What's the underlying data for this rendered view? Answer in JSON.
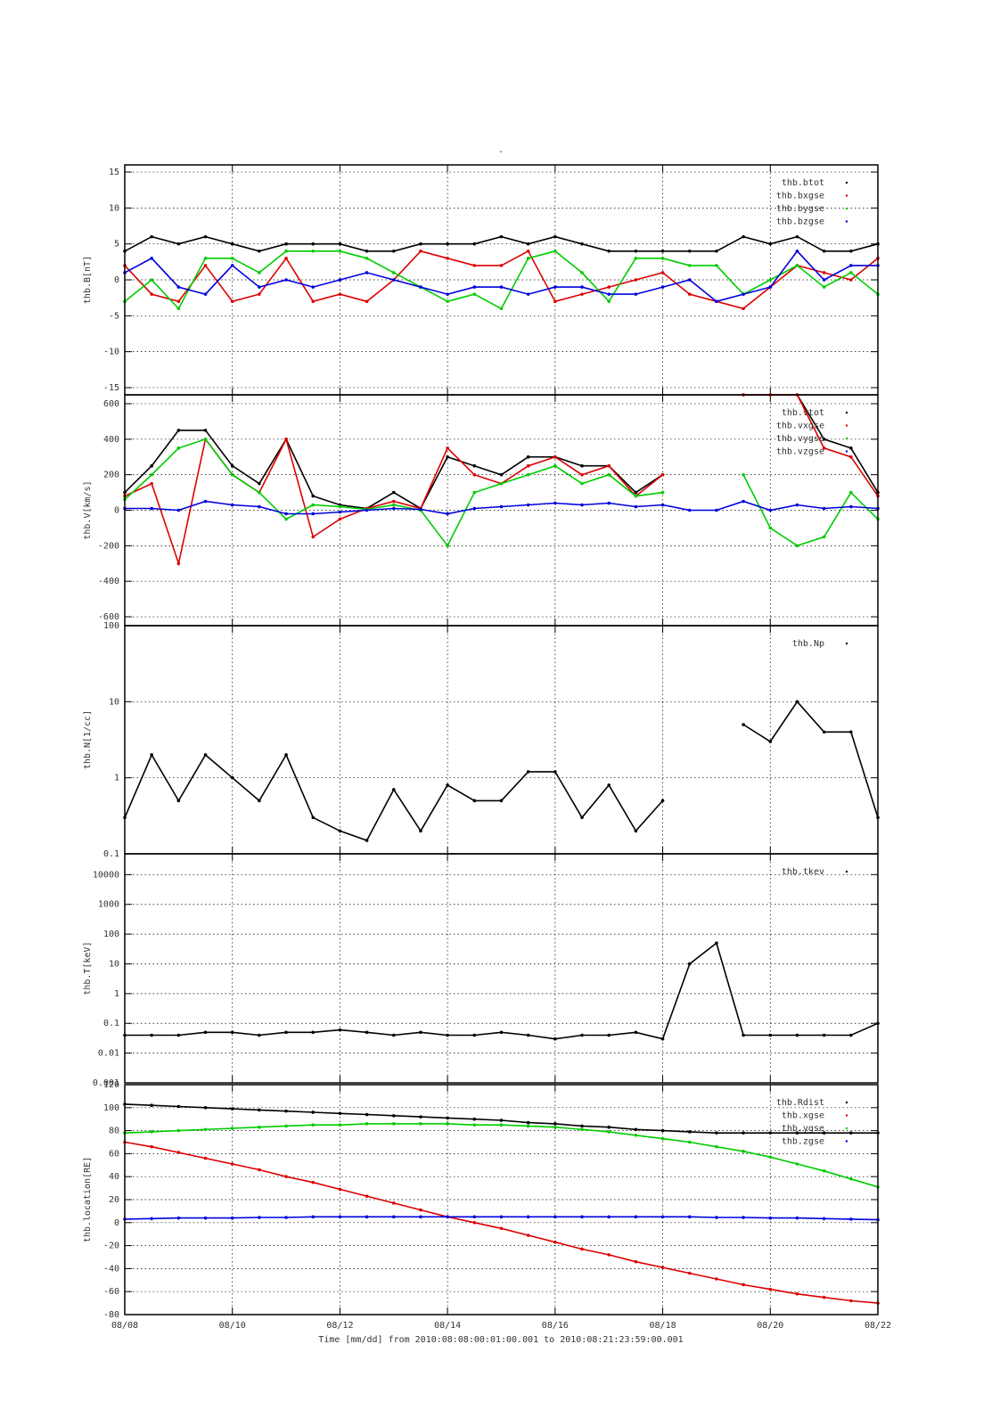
{
  "title": "-",
  "x_axis": {
    "label": "Time [mm/dd]  from 2010:08:08:00:01:00.001  to  2010:08:21:23:59:00.001",
    "x": [
      8,
      8.5,
      9,
      9.5,
      10,
      10.5,
      11,
      11.5,
      12,
      12.5,
      13,
      13.5,
      14,
      14.5,
      15,
      15.5,
      16,
      16.5,
      17,
      17.5,
      18,
      18.5,
      19,
      19.5,
      20,
      20.5,
      21,
      21.5,
      22
    ],
    "xlim": [
      8,
      22
    ],
    "xticks": [
      {
        "value": 8,
        "label": "08/08"
      },
      {
        "value": 10,
        "label": "08/10"
      },
      {
        "value": 12,
        "label": "08/12"
      },
      {
        "value": 14,
        "label": "08/14"
      },
      {
        "value": 16,
        "label": "08/16"
      },
      {
        "value": 18,
        "label": "08/18"
      },
      {
        "value": 20,
        "label": "08/20"
      },
      {
        "value": 22,
        "label": "08/22"
      }
    ]
  },
  "chart_data": [
    {
      "type": "scatter",
      "ylabel": "thb.B[nT]",
      "ylim": [
        -16,
        16
      ],
      "yticks": [
        -15,
        -10,
        -5,
        0,
        5,
        10,
        15
      ],
      "log": false,
      "grid": true,
      "series": [
        {
          "name": "thb.btot",
          "color": "#000000",
          "values": [
            4,
            6,
            5,
            6,
            5,
            4,
            5,
            5,
            5,
            4,
            4,
            5,
            5,
            5,
            6,
            5,
            6,
            5,
            4,
            4,
            4,
            4,
            4,
            6,
            5,
            6,
            4,
            4,
            5
          ]
        },
        {
          "name": "thb.bxgse",
          "color": "#dd0000",
          "values": [
            2,
            -2,
            -3,
            2,
            -3,
            -2,
            3,
            -3,
            -2,
            -3,
            0,
            4,
            3,
            2,
            2,
            4,
            -3,
            -2,
            -1,
            0,
            1,
            -2,
            -3,
            -4,
            -1,
            2,
            1,
            0,
            3
          ]
        },
        {
          "name": "thb.bygse",
          "color": "#00cc00",
          "values": [
            -3,
            0,
            -4,
            3,
            3,
            1,
            4,
            4,
            4,
            3,
            1,
            -1,
            -3,
            -2,
            -4,
            3,
            4,
            1,
            -3,
            3,
            3,
            2,
            2,
            -2,
            0,
            2,
            -1,
            1,
            -2
          ]
        },
        {
          "name": "thb.bzgse",
          "color": "#0000dd",
          "values": [
            1,
            3,
            -1,
            -2,
            2,
            -1,
            0,
            -1,
            0,
            1,
            0,
            -1,
            -2,
            -1,
            -1,
            -2,
            -1,
            -1,
            -2,
            -2,
            -1,
            0,
            -3,
            -2,
            -1,
            4,
            0,
            2,
            2
          ]
        }
      ]
    },
    {
      "type": "scatter",
      "ylabel": "thb.V[km/s]",
      "ylim": [
        -650,
        650
      ],
      "yticks": [
        -600,
        -400,
        -200,
        0,
        200,
        400,
        600
      ],
      "log": false,
      "grid": true,
      "series": [
        {
          "name": "thb.vtot",
          "color": "#000000",
          "values": [
            100,
            250,
            450,
            450,
            250,
            150,
            400,
            80,
            30,
            10,
            100,
            10,
            300,
            250,
            200,
            300,
            300,
            250,
            250,
            100,
            200,
            null,
            null,
            650,
            650,
            650,
            400,
            350,
            100
          ]
        },
        {
          "name": "thb.vxgse",
          "color": "#dd0000",
          "values": [
            80,
            150,
            -300,
            400,
            200,
            100,
            400,
            -150,
            -50,
            10,
            50,
            10,
            350,
            200,
            150,
            250,
            300,
            200,
            250,
            80,
            200,
            null,
            null,
            650,
            650,
            650,
            350,
            300,
            80
          ]
        },
        {
          "name": "thb.vygse",
          "color": "#00cc00",
          "values": [
            60,
            200,
            350,
            400,
            200,
            100,
            -50,
            30,
            20,
            5,
            30,
            0,
            -200,
            100,
            150,
            200,
            250,
            150,
            200,
            80,
            100,
            null,
            null,
            200,
            -100,
            -200,
            -150,
            100,
            -50
          ]
        },
        {
          "name": "thb.vzgse",
          "color": "#0000dd",
          "values": [
            10,
            10,
            0,
            50,
            30,
            20,
            -20,
            -20,
            -10,
            0,
            10,
            5,
            -20,
            10,
            20,
            30,
            40,
            30,
            40,
            20,
            30,
            0,
            0,
            50,
            0,
            30,
            10,
            20,
            10
          ]
        }
      ]
    },
    {
      "type": "scatter",
      "ylabel": "thb.N[1/cc]",
      "ylim": [
        0.1,
        100
      ],
      "yticks": [
        0.1,
        1,
        10,
        100
      ],
      "log": true,
      "grid": true,
      "series": [
        {
          "name": "thb.Np",
          "color": "#000000",
          "values": [
            0.3,
            2,
            0.5,
            2,
            1,
            0.5,
            2,
            0.3,
            0.2,
            0.15,
            0.7,
            0.2,
            0.8,
            0.5,
            0.5,
            1.2,
            1.2,
            0.3,
            0.8,
            0.2,
            0.5,
            null,
            null,
            5,
            3,
            10,
            4,
            4,
            0.3
          ]
        }
      ]
    },
    {
      "type": "scatter",
      "ylabel": "thb.T[keV]",
      "ylim": [
        0.001,
        50000
      ],
      "yticks": [
        0.001,
        0.01,
        0.1,
        1,
        10,
        100,
        1000,
        10000
      ],
      "log": true,
      "grid": true,
      "series": [
        {
          "name": "thb.tkev",
          "color": "#000000",
          "values": [
            0.04,
            0.04,
            0.04,
            0.05,
            0.05,
            0.04,
            0.05,
            0.05,
            0.06,
            0.05,
            0.04,
            0.05,
            0.04,
            0.04,
            0.05,
            0.04,
            0.03,
            0.04,
            0.04,
            0.05,
            0.03,
            10,
            50,
            0.04,
            0.04,
            0.04,
            0.04,
            0.04,
            0.1
          ]
        }
      ]
    },
    {
      "type": "scatter",
      "ylabel": "thb.location[RE]",
      "ylim": [
        -80,
        120
      ],
      "yticks": [
        -80,
        -60,
        -40,
        -20,
        0,
        20,
        40,
        60,
        80,
        100,
        120
      ],
      "log": false,
      "grid": true,
      "series": [
        {
          "name": "thb.Rdist",
          "color": "#000000",
          "values": [
            103,
            102,
            101,
            100,
            99,
            98,
            97,
            96,
            95,
            94,
            93,
            92,
            91,
            90,
            89,
            87,
            86,
            84,
            83,
            81,
            80,
            79,
            78,
            78,
            78,
            78,
            78,
            78,
            78
          ]
        },
        {
          "name": "thb.xgse",
          "color": "#dd0000",
          "values": [
            70,
            66,
            61,
            56,
            51,
            46,
            40,
            35,
            29,
            23,
            17,
            11,
            5,
            0,
            -5,
            -11,
            -17,
            -23,
            -28,
            -34,
            -39,
            -44,
            -49,
            -54,
            -58,
            -62,
            -65,
            -68,
            -70
          ]
        },
        {
          "name": "thb.ygse",
          "color": "#00cc00",
          "values": [
            78,
            79,
            80,
            81,
            82,
            83,
            84,
            85,
            85,
            86,
            86,
            86,
            86,
            85,
            85,
            84,
            83,
            81,
            79,
            76,
            73,
            70,
            66,
            62,
            57,
            51,
            45,
            38,
            31
          ]
        },
        {
          "name": "thb.zgse",
          "color": "#0000dd",
          "values": [
            3,
            3.5,
            4,
            4,
            4,
            4.5,
            4.5,
            5,
            5,
            5,
            5,
            5,
            5,
            5,
            5,
            5,
            5,
            5,
            5,
            5,
            5,
            5,
            4.5,
            4.5,
            4,
            4,
            3.5,
            3,
            2.5
          ]
        }
      ]
    }
  ]
}
